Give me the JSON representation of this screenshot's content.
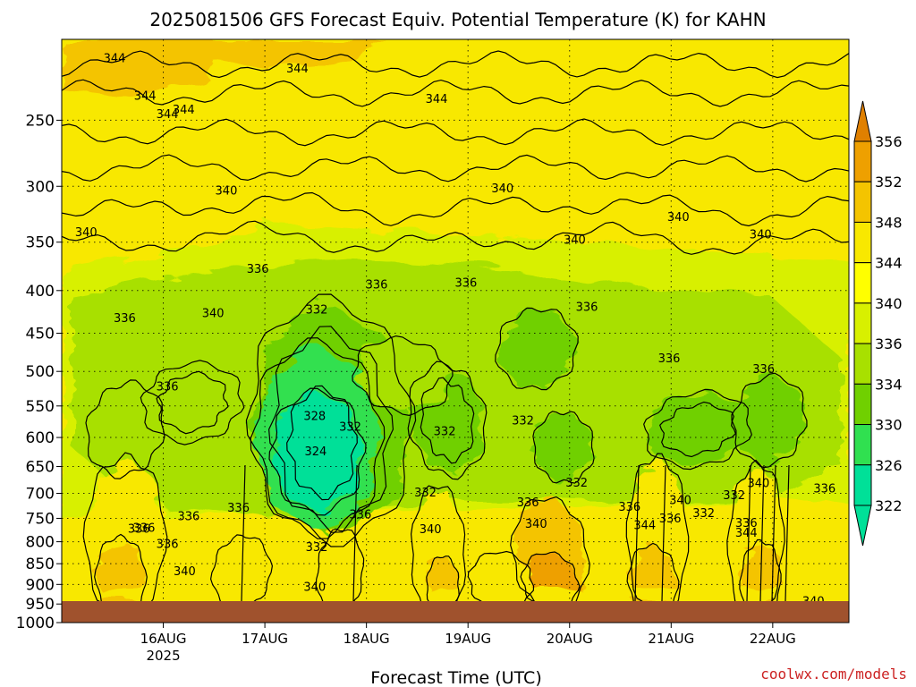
{
  "chart_data": {
    "type": "heatmap",
    "title": "2025081506 GFS Forecast Equiv. Potential Temperature (K) for KAHN",
    "xlabel": "Forecast Time (UTC)",
    "ylabel": "",
    "credit": "coolwx.com/models",
    "y_scale": "log-pressure, inverted",
    "ylim": [
      1000,
      200
    ],
    "y_ticks": [
      "250",
      "300",
      "350",
      "400",
      "450",
      "500",
      "550",
      "600",
      "650",
      "700",
      "750",
      "800",
      "850",
      "900",
      "950",
      "1000"
    ],
    "x_ticks": [
      {
        "label": "16AUG",
        "sublabel": "2025"
      },
      {
        "label": "17AUG",
        "sublabel": ""
      },
      {
        "label": "18AUG",
        "sublabel": ""
      },
      {
        "label": "19AUG",
        "sublabel": ""
      },
      {
        "label": "20AUG",
        "sublabel": ""
      },
      {
        "label": "21AUG",
        "sublabel": ""
      },
      {
        "label": "22AUG",
        "sublabel": ""
      }
    ],
    "grid": true,
    "legend_position": "right colorbar",
    "colorbar": {
      "levels": [
        "356",
        "352",
        "348",
        "344",
        "340",
        "336",
        "334",
        "330",
        "326",
        "322"
      ],
      "colors": [
        "#e08000",
        "#eea000",
        "#f4c400",
        "#f8e800",
        "#ffff00",
        "#d8f000",
        "#a8e000",
        "#70d000",
        "#30e050",
        "#00e098"
      ]
    },
    "ground_color": "#a0522d",
    "contour_labels": [
      {
        "day": 15.52,
        "p": 211,
        "text": "344"
      },
      {
        "day": 15.82,
        "p": 234,
        "text": "344"
      },
      {
        "day": 16.04,
        "p": 246,
        "text": "344"
      },
      {
        "day": 16.2,
        "p": 243,
        "text": "344"
      },
      {
        "day": 17.32,
        "p": 217,
        "text": "344"
      },
      {
        "day": 18.69,
        "p": 236,
        "text": "344"
      },
      {
        "day": 20.05,
        "p": 348,
        "text": "340"
      },
      {
        "day": 19.34,
        "p": 302,
        "text": "340"
      },
      {
        "day": 16.62,
        "p": 304,
        "text": "340"
      },
      {
        "day": 15.24,
        "p": 341,
        "text": "340"
      },
      {
        "day": 21.07,
        "p": 327,
        "text": "340"
      },
      {
        "day": 21.88,
        "p": 343,
        "text": "340"
      },
      {
        "day": 16.93,
        "p": 377,
        "text": "336"
      },
      {
        "day": 18.1,
        "p": 394,
        "text": "336"
      },
      {
        "day": 18.98,
        "p": 392,
        "text": "336"
      },
      {
        "day": 20.17,
        "p": 419,
        "text": "336"
      },
      {
        "day": 15.62,
        "p": 432,
        "text": "336"
      },
      {
        "day": 16.49,
        "p": 426,
        "text": "340"
      },
      {
        "day": 17.51,
        "p": 422,
        "text": "332"
      },
      {
        "day": 20.98,
        "p": 483,
        "text": "336"
      },
      {
        "day": 21.91,
        "p": 497,
        "text": "336"
      },
      {
        "day": 16.04,
        "p": 522,
        "text": "336"
      },
      {
        "day": 17.49,
        "p": 566,
        "text": "328"
      },
      {
        "day": 17.84,
        "p": 583,
        "text": "332"
      },
      {
        "day": 18.77,
        "p": 590,
        "text": "332"
      },
      {
        "day": 19.54,
        "p": 573,
        "text": "332"
      },
      {
        "day": 17.5,
        "p": 624,
        "text": "324"
      },
      {
        "day": 20.07,
        "p": 680,
        "text": "332"
      },
      {
        "day": 21.09,
        "p": 714,
        "text": "340"
      },
      {
        "day": 21.86,
        "p": 681,
        "text": "340"
      },
      {
        "day": 16.74,
        "p": 729,
        "text": "336"
      },
      {
        "day": 18.58,
        "p": 699,
        "text": "332"
      },
      {
        "day": 19.59,
        "p": 718,
        "text": "336"
      },
      {
        "day": 20.59,
        "p": 727,
        "text": "336"
      },
      {
        "day": 21.62,
        "p": 704,
        "text": "332"
      },
      {
        "day": 22.51,
        "p": 691,
        "text": "336"
      },
      {
        "day": 17.94,
        "p": 743,
        "text": "336"
      },
      {
        "day": 20.99,
        "p": 751,
        "text": "336"
      },
      {
        "day": 21.74,
        "p": 760,
        "text": "336"
      },
      {
        "day": 21.32,
        "p": 740,
        "text": "332"
      },
      {
        "day": 15.76,
        "p": 773,
        "text": "336"
      },
      {
        "day": 16.04,
        "p": 806,
        "text": "336"
      },
      {
        "day": 16.25,
        "p": 746,
        "text": "336"
      },
      {
        "day": 15.81,
        "p": 771,
        "text": "336"
      },
      {
        "day": 18.63,
        "p": 774,
        "text": "340"
      },
      {
        "day": 19.67,
        "p": 762,
        "text": "340"
      },
      {
        "day": 20.74,
        "p": 765,
        "text": "344"
      },
      {
        "day": 21.74,
        "p": 781,
        "text": "344"
      },
      {
        "day": 17.51,
        "p": 813,
        "text": "332"
      },
      {
        "day": 16.21,
        "p": 869,
        "text": "340"
      },
      {
        "day": 17.49,
        "p": 907,
        "text": "340"
      },
      {
        "day": 16.84,
        "p": 986,
        "text": "340"
      },
      {
        "day": 22.4,
        "p": 944,
        "text": "340"
      }
    ]
  }
}
